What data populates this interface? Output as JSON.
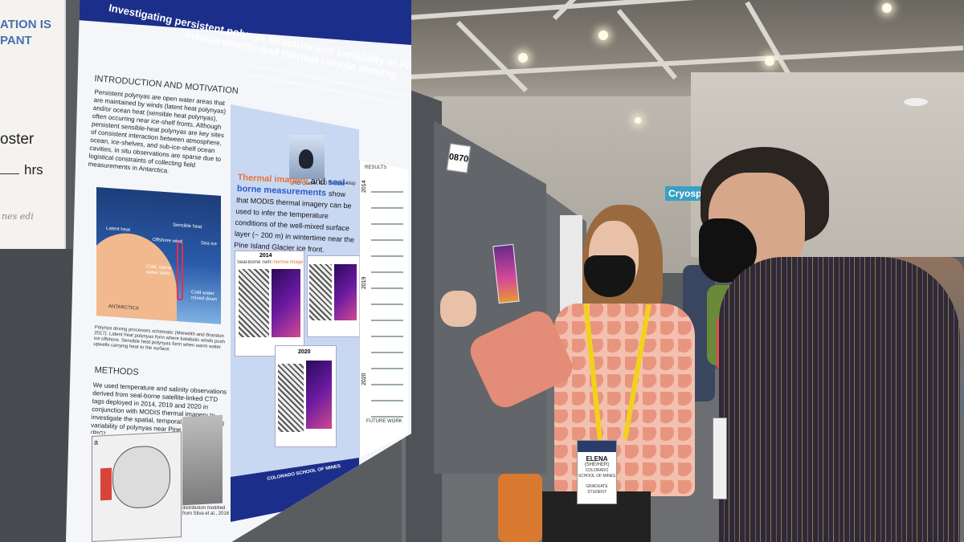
{
  "left_poster": {
    "line1": "ATION IS",
    "line2": "PANT",
    "line3": "oster",
    "line4": "hrs",
    "line5": "nes  edi"
  },
  "poster": {
    "title_line1": "Investigating persistent polynya structure and variability at Pine Island Glacier using seal-borne",
    "title_line2": "measurements and thermal remote sensing",
    "authors": "Elena Savidge¹, Tasha Snow², Matthew Siegfried², Lars Boehme³, Guillaume Bortolotto³, Laura Herraiz⁴",
    "affiliations": "¹ Colorado School of Mines, USA | ² University of St Andrews, UK | ³ University of Stockholm, USA",
    "intro_heading": "INTRODUCTION AND MOTIVATION",
    "intro_text": "Persistent polynyas are open water areas that are maintained by winds (latent heat polynyas) and/or ocean heat (sensible heat polynyas), often occurring near ice-shelf fronts. Although persistent sensible-heat polynyas are key sites of consistent interaction between atmosphere, ocean, ice-shelves, and sub-ice-shelf ocean cavities, in situ observations are sparse due to logistical constraints of collecting field measurements in Antarctica.",
    "schematic_labels": [
      "Latent heat",
      "Sensible heat",
      "Offshore wind",
      "Sea ice",
      "Cold, saline water sinks",
      "Cold water mixed down",
      "ANTARCTICA"
    ],
    "schematic_caption": "Polynya driving processes schematic (Meredith and Brandon 2017). Latent heat polynyas form where katabatic winds push ice offshore. Sensible heat polynyas form when warm water upwells carrying heat to the surface.",
    "methods_heading": "METHODS",
    "methods_text": "We used temperature and salinity observations derived from seal-borne satellite-linked CTD tags deployed in 2014, 2019 and 2020 in conjunction with MODIS thermal imagery to investigate the spatial, temporal, and structural variability of polynyas near Pine Island Glacier (PIG).",
    "thermal_text_a": "Thermal imagery",
    "thermal_text_b": "and",
    "thermal_text_c": "seal-borne measurements",
    "thermal_text_d": "show that MODIS thermal imagery can be used to infer the temperature conditions of the well-mixed surface layer (~ 200 m) in wintertime near the Pine Island Glacier ice front.",
    "photo_caption": "PIG Glacier, CO Seabed Map",
    "year_2014": "2014",
    "year_2019": "2019",
    "year_2020": "2020",
    "panel_label_seal": "Seal-borne Temperature",
    "panel_label_thermal": "Thermal Imagery",
    "results_label": "RESULTS",
    "future_label": "FUTURE WORK",
    "map_caption": "distribution modified from Silva et al., 2016",
    "logo_text": "COLORADO SCHOOL OF MINES",
    "map_label": "a"
  },
  "board_number": "0870",
  "sign_text": "Cryosphe",
  "badge": {
    "name": "ELENA",
    "pronouns": "(SHE/HER)",
    "org": "COLORADO SCHOOL OF MINES",
    "role": "GRADUATE STUDENT"
  }
}
